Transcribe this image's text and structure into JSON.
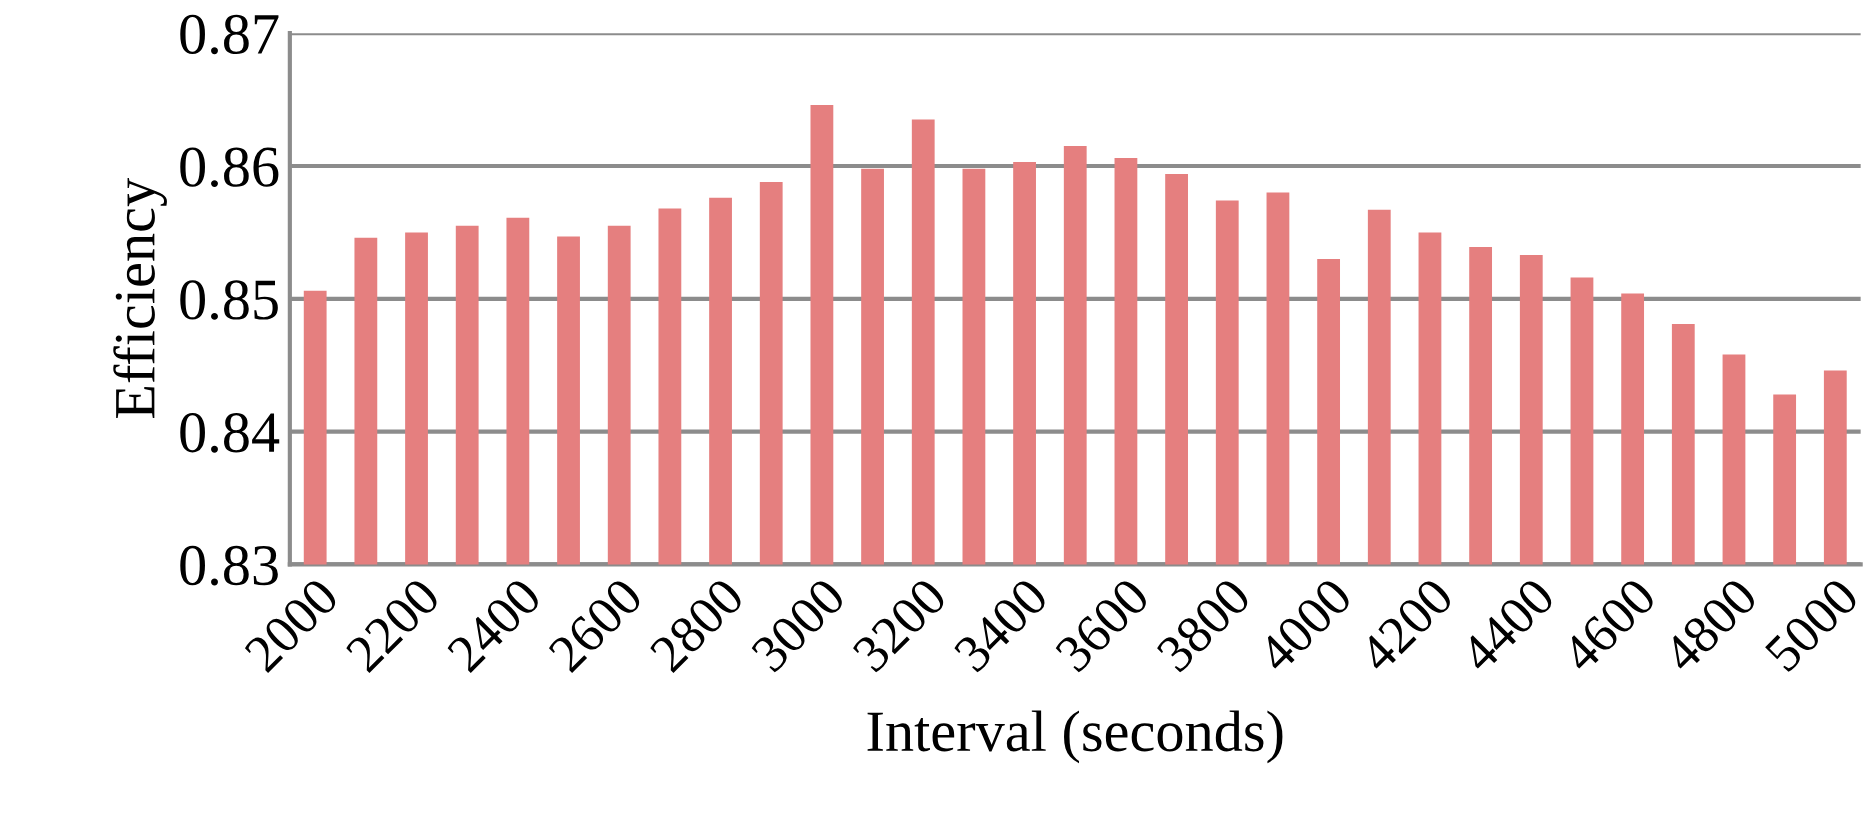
{
  "chart_data": {
    "type": "bar",
    "xlabel": "Interval (seconds)",
    "ylabel": "Efficiency",
    "categories": [
      "2000",
      null,
      "2200",
      null,
      "2400",
      null,
      "2600",
      null,
      "2800",
      null,
      "3000",
      null,
      "3200",
      null,
      "3400",
      null,
      "3600",
      null,
      "3800",
      null,
      "4000",
      null,
      "4200",
      null,
      "4400",
      null,
      "4600",
      null,
      "4800",
      null,
      "5000"
    ],
    "values": [
      0.8506,
      0.8546,
      0.855,
      0.8555,
      0.8561,
      0.8547,
      0.8555,
      0.8568,
      0.8576,
      0.8588,
      0.8646,
      0.8598,
      0.8635,
      0.8598,
      0.8603,
      0.8615,
      0.8606,
      0.8594,
      0.8574,
      0.858,
      0.853,
      0.8567,
      0.855,
      0.8539,
      0.8533,
      0.8516,
      0.8504,
      0.8481,
      0.8458,
      0.8428,
      0.8446
    ],
    "color": "#e57f7f",
    "ylim": [
      0.83,
      0.87
    ],
    "yticks": [
      0.83,
      0.84,
      0.85,
      0.86,
      0.87
    ],
    "grid": "y"
  }
}
